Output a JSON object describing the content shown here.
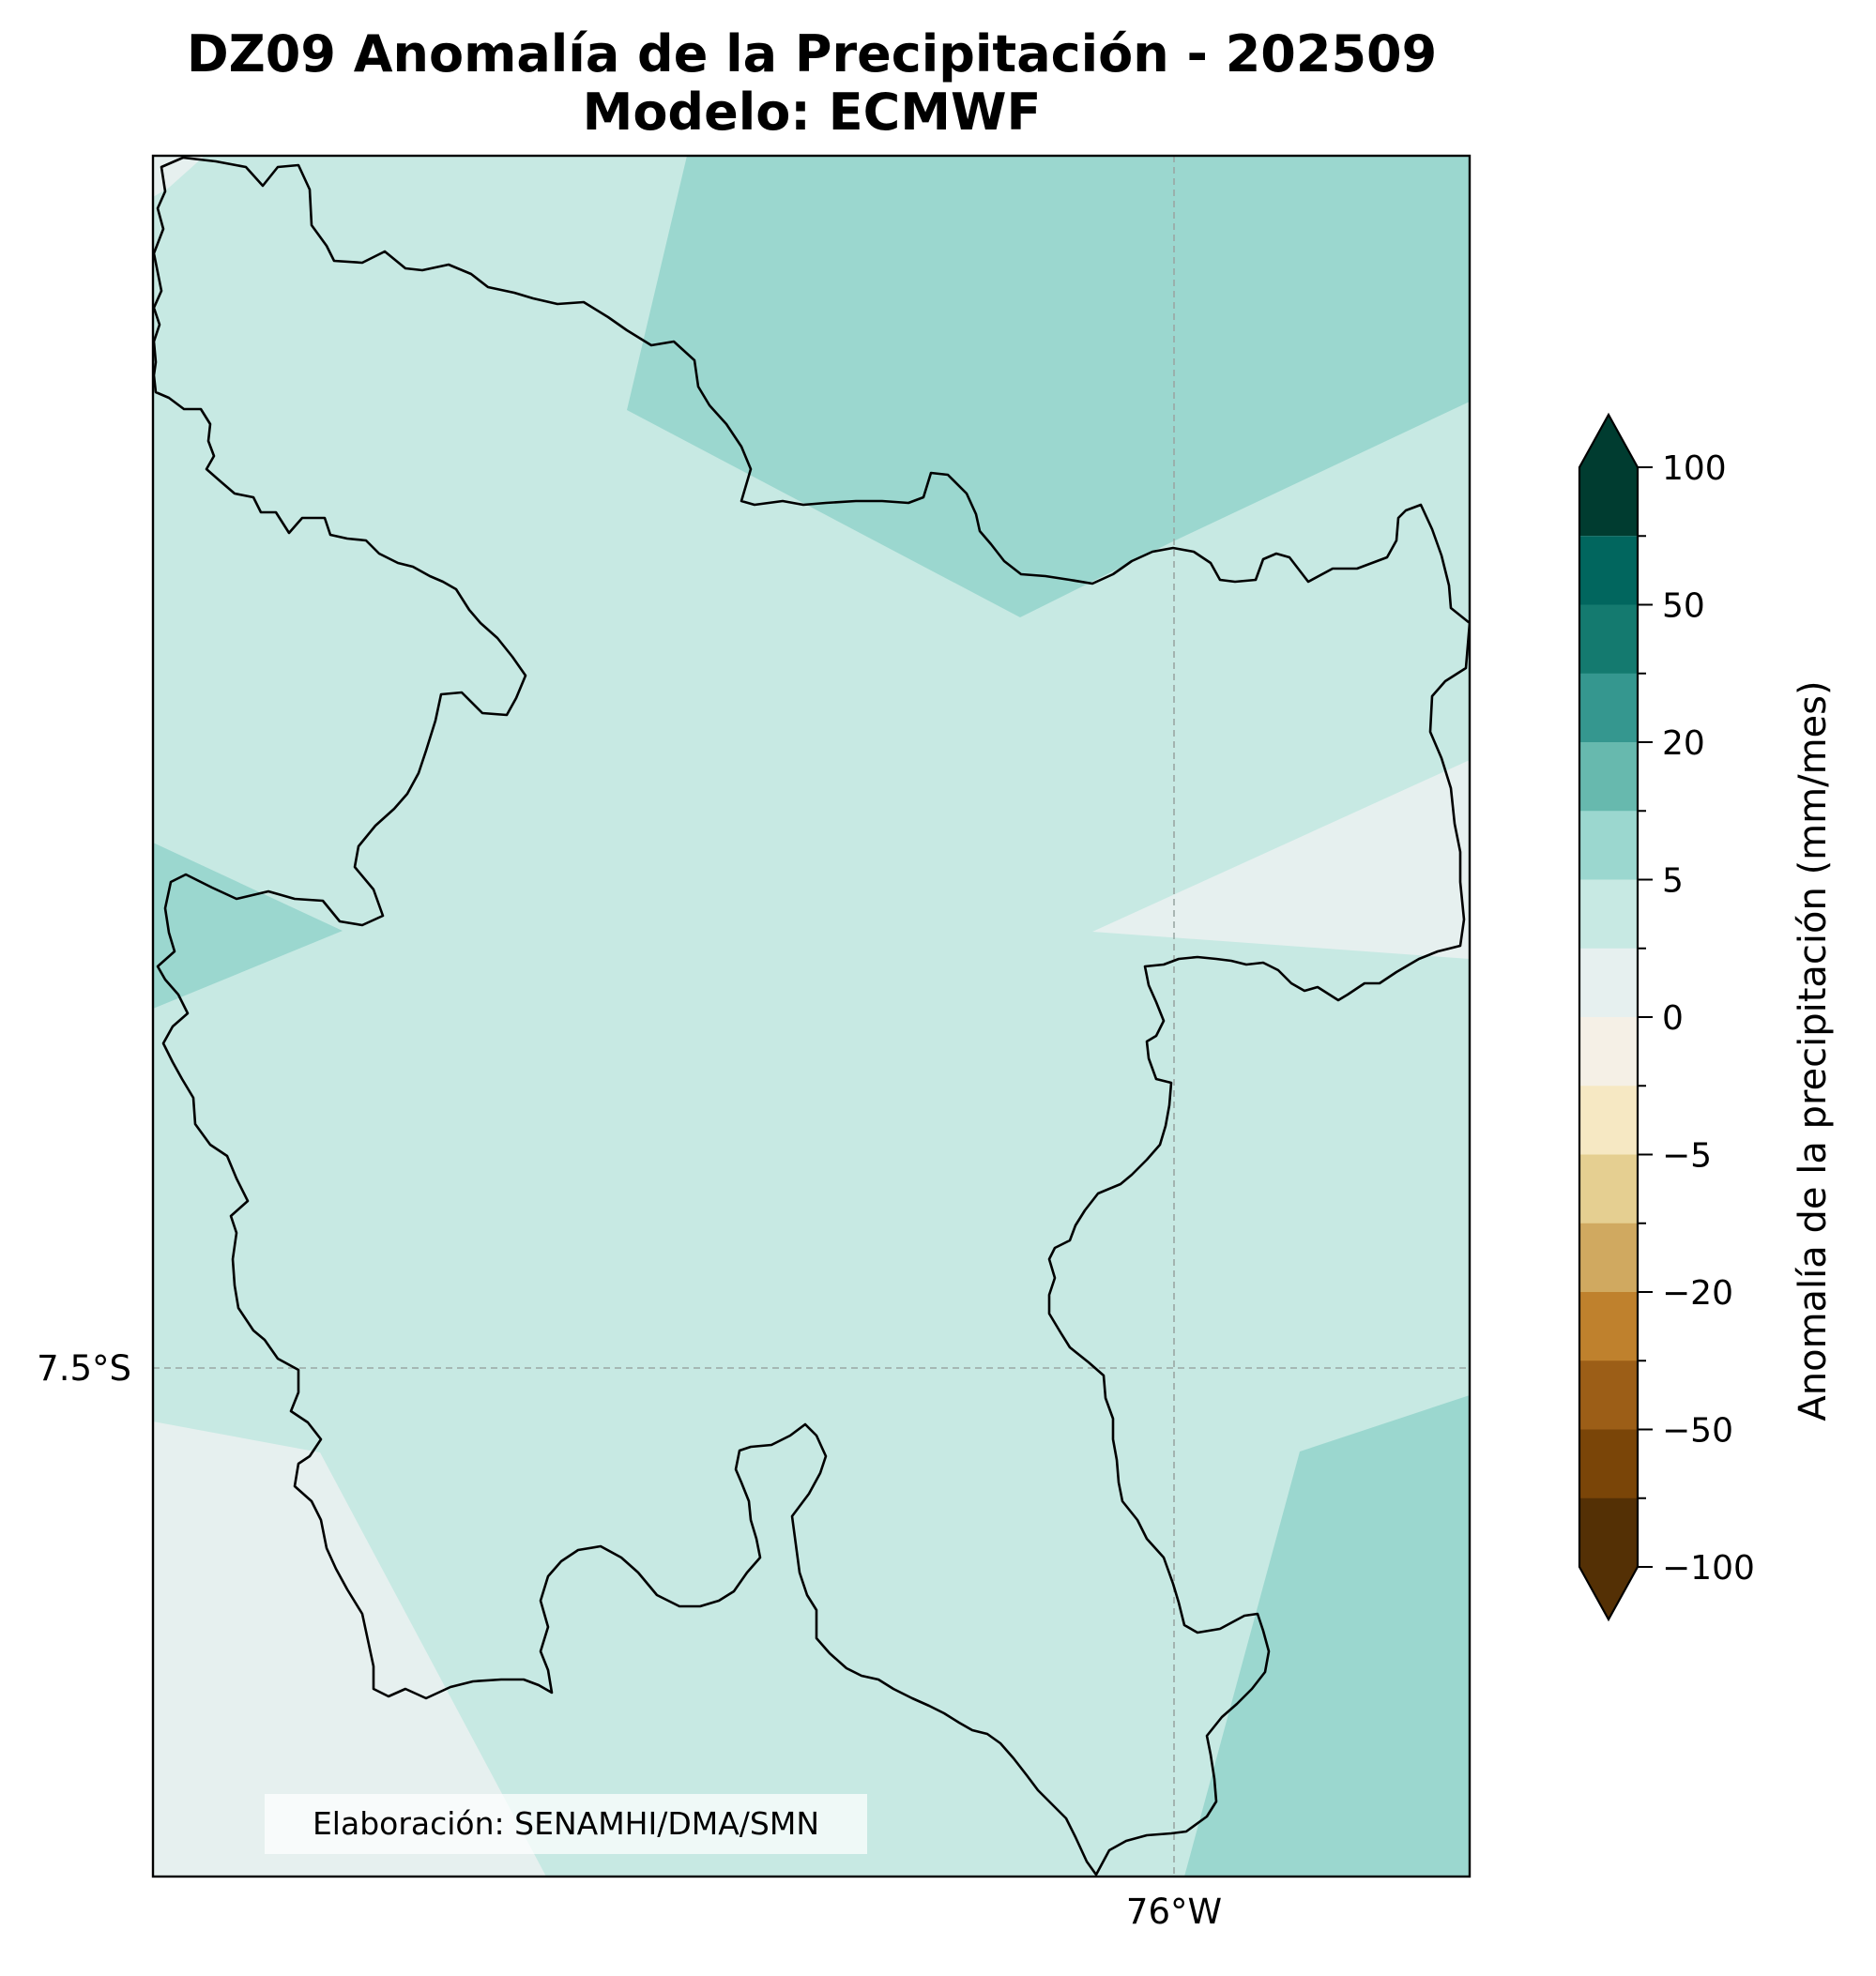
{
  "title": {
    "line1": "DZ09 Anomalía de la Precipitación - 202509",
    "line2": "Modelo: ECMWF"
  },
  "map": {
    "lat_label": "7.5°S",
    "lon_label": "76°W",
    "credit": "Elaboración: SENAMHI/DMA/SMN",
    "fill_categories": [
      {
        "range": "5 to 10",
        "color": "#9bd7cf"
      },
      {
        "range": "2 to 5",
        "color": "#c7e9e3"
      },
      {
        "range": "0 to 2",
        "color": "#e6f0ef"
      }
    ]
  },
  "colorbar": {
    "label": "Anomalía de la precipitación (mm/mes)",
    "tick_labels": [
      "100",
      "50",
      "20",
      "5",
      "0",
      "−5",
      "−20",
      "−50",
      "−100"
    ],
    "extend": "both",
    "colors": [
      "#003c30",
      "#01665e",
      "#147a6f",
      "#35978f",
      "#67b9ae",
      "#9bd7cf",
      "#c7e9e3",
      "#e6f0ef",
      "#f5f0e6",
      "#f6e8c3",
      "#e5cf91",
      "#d0a960",
      "#bf812d",
      "#9c5e17",
      "#7a4508",
      "#543005"
    ]
  }
}
